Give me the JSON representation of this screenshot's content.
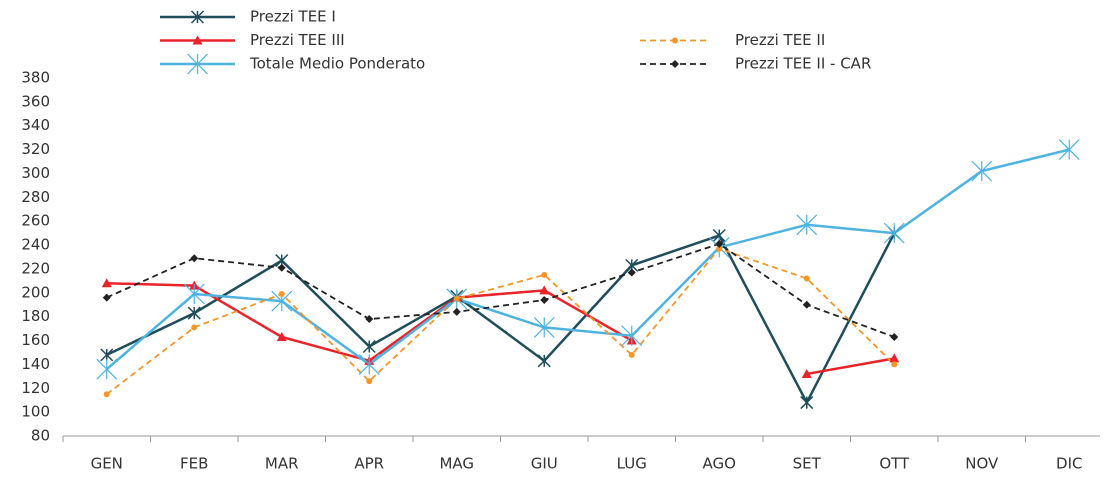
{
  "chart_data": {
    "type": "line",
    "categories": [
      "GEN",
      "FEB",
      "MAR",
      "APR",
      "MAG",
      "GIU",
      "LUG",
      "AGO",
      "SET",
      "OTT",
      "NOV",
      "DIC"
    ],
    "series": [
      {
        "name": "Prezzi TEE I",
        "color": "#1f4e5a",
        "marker": "star",
        "dash": false,
        "values": [
          148,
          183,
          227,
          155,
          197,
          143,
          223,
          248,
          108,
          250,
          null,
          null
        ]
      },
      {
        "name": "Prezzi TEE III",
        "color": "#e8232a",
        "marker": "triangle",
        "dash": false,
        "values": [
          208,
          206,
          163,
          143,
          196,
          202,
          160,
          null,
          132,
          145,
          null,
          null
        ]
      },
      {
        "name": "Totale Medio Ponderato",
        "color": "#4fb3e0",
        "marker": "bigstar",
        "dash": false,
        "values": [
          136,
          199,
          193,
          140,
          195,
          171,
          164,
          238,
          257,
          250,
          302,
          320
        ]
      },
      {
        "name": "Prezzi TEE II",
        "color": "#f5962a",
        "marker": "circle",
        "dash": true,
        "values": [
          115,
          171,
          199,
          126,
          195,
          215,
          148,
          237,
          212,
          140,
          null,
          null
        ]
      },
      {
        "name": "Prezzi TEE II - CAR",
        "color": "#222222",
        "marker": "diamond",
        "dash": true,
        "values": [
          196,
          229,
          221,
          178,
          184,
          194,
          217,
          241,
          190,
          163,
          null,
          null
        ]
      }
    ],
    "ylim": [
      80,
      380
    ],
    "yticks": [
      80,
      100,
      120,
      140,
      160,
      180,
      200,
      220,
      240,
      260,
      280,
      300,
      320,
      340,
      360,
      380
    ],
    "grid": false
  }
}
